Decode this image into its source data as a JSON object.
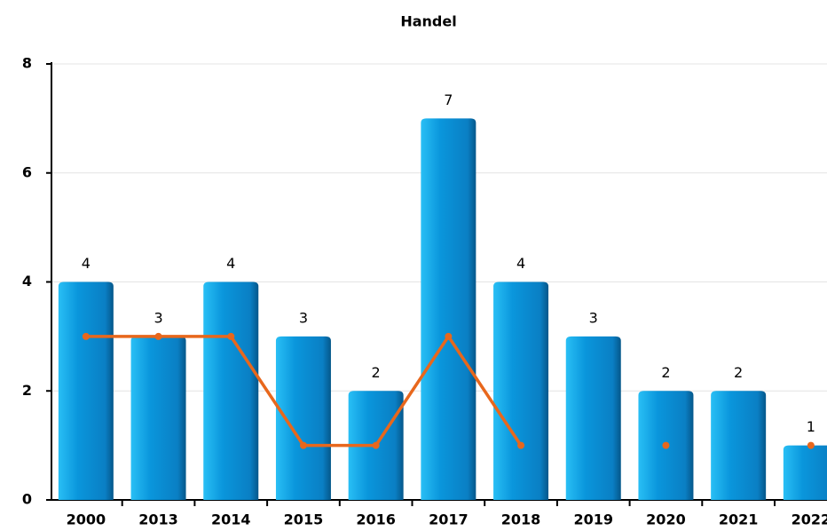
{
  "chart_data": {
    "type": "bar",
    "title": "Handel",
    "categories": [
      "2000",
      "2013",
      "2014",
      "2015",
      "2016",
      "2017",
      "2018",
      "2019",
      "2020",
      "2021",
      "2022"
    ],
    "series": [
      {
        "type": "bar",
        "color": "#0a8fd6",
        "values": [
          4,
          3,
          4,
          3,
          2,
          7,
          4,
          3,
          2,
          2,
          1
        ]
      },
      {
        "type": "line",
        "color": "#e8671c",
        "values": [
          3,
          3,
          3,
          1,
          1,
          3,
          1,
          null,
          1,
          null,
          1
        ]
      }
    ],
    "ylim": [
      0,
      8
    ],
    "yticks": [
      0,
      2,
      4,
      6,
      8
    ],
    "grid": true
  }
}
